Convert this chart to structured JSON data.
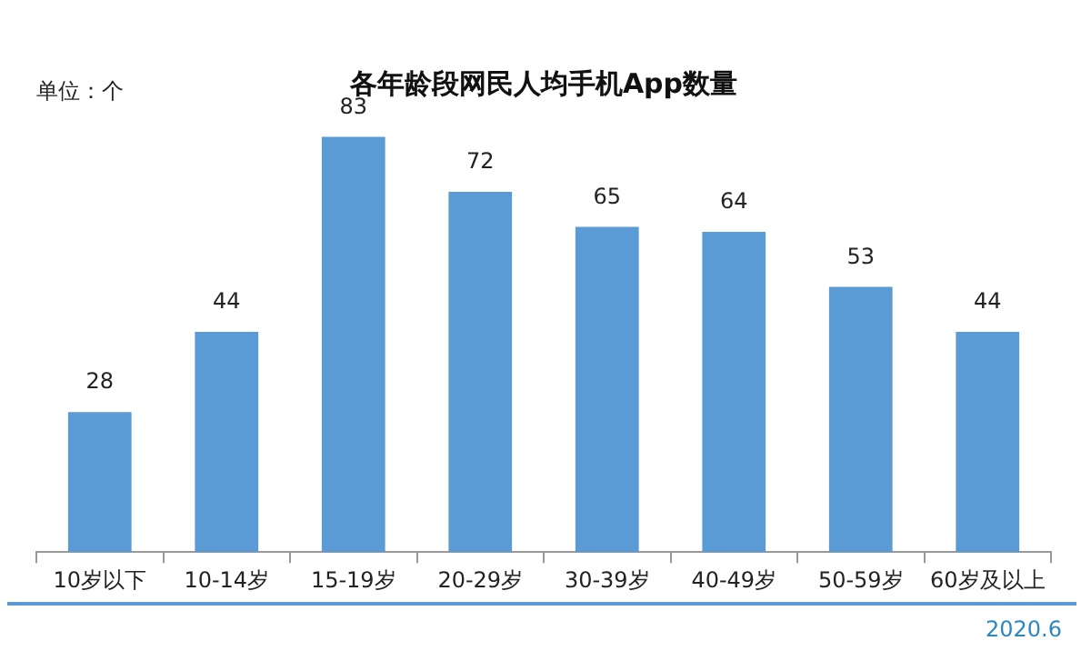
{
  "chart_data": {
    "type": "bar",
    "title": "各年龄段网民人均手机App数量",
    "subtitle": "单位：个",
    "categories": [
      "10岁以下",
      "10-14岁",
      "15-19岁",
      "20-29岁",
      "30-39岁",
      "40-49岁",
      "50-59岁",
      "60岁及以上"
    ],
    "values": [
      28,
      44,
      83,
      72,
      65,
      64,
      53,
      44
    ],
    "color": "#5b9bd5",
    "data_labels": true,
    "grid": false,
    "legend": false,
    "annotations": [
      "2020.6"
    ]
  }
}
